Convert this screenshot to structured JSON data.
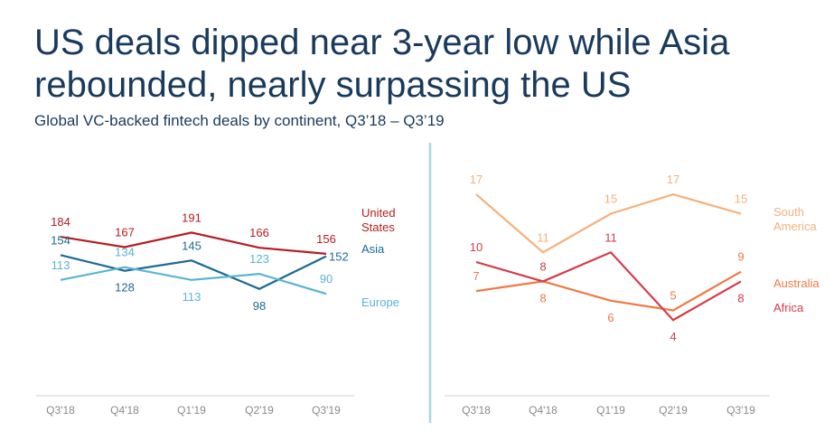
{
  "header": {
    "title": "US deals dipped near 3-year low while Asia rebounded, nearly surpassing the US",
    "subtitle": "Global VC-backed fintech deals by continent, Q3’18 – Q3’19"
  },
  "colors": {
    "united_states": "#b41e22",
    "asia": "#1d6a92",
    "europe": "#5bb3d3",
    "south_america": "#f5b07a",
    "australia": "#ee7a45",
    "africa": "#d63a4a",
    "divider": "#a8d8de",
    "axis": "#d0d0d0",
    "tick": "#8a8a8a"
  },
  "chart_data": [
    {
      "type": "line",
      "title": "",
      "xlabel": "",
      "ylabel": "",
      "categories": [
        "Q3'18",
        "Q4'18",
        "Q1'19",
        "Q2'19",
        "Q3'19"
      ],
      "grid": false,
      "legend": "right, at line ends",
      "series": [
        {
          "name": "United States",
          "values": [
            184,
            167,
            191,
            166,
            156
          ],
          "color": "#b41e22"
        },
        {
          "name": "Asia",
          "values": [
            154,
            128,
            145,
            98,
            152
          ],
          "color": "#1d6a92"
        },
        {
          "name": "Europe",
          "values": [
            113,
            134,
            113,
            123,
            90
          ],
          "color": "#5bb3d3"
        }
      ]
    },
    {
      "type": "line",
      "title": "",
      "xlabel": "",
      "ylabel": "",
      "categories": [
        "Q3'18",
        "Q4'18",
        "Q1'19",
        "Q2'19",
        "Q3'19"
      ],
      "grid": false,
      "legend": "right, at line ends",
      "series": [
        {
          "name": "South America",
          "values": [
            17,
            11,
            15,
            17,
            15
          ],
          "color": "#f5b07a"
        },
        {
          "name": "Australia",
          "values": [
            7,
            8,
            6,
            5,
            9
          ],
          "color": "#ee7a45"
        },
        {
          "name": "Africa",
          "values": [
            10,
            8,
            11,
            4,
            8
          ],
          "color": "#d63a4a"
        }
      ]
    }
  ],
  "legend_labels": {
    "united_states": [
      "United",
      "States"
    ],
    "asia": [
      "Asia"
    ],
    "europe": [
      "Europe"
    ],
    "south_america": [
      "South",
      "America"
    ],
    "australia": [
      "Australia"
    ],
    "africa": [
      "Africa"
    ]
  }
}
